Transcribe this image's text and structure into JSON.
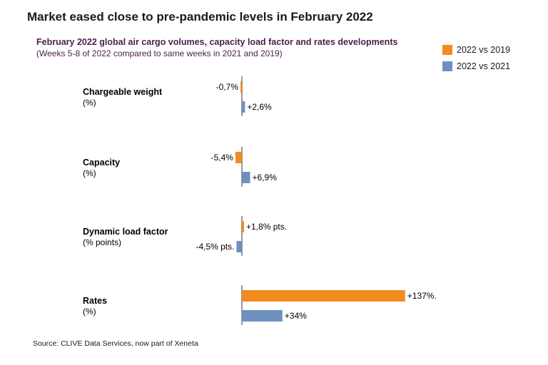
{
  "header": {
    "title": "Market eased close to pre-pandemic levels in February 2022",
    "subtitle": "February 2022 global air cargo volumes, capacity load factor and rates developments",
    "subtitle2": "(Weeks 5-8 of 2022 compared to same weeks in 2021 and 2019)"
  },
  "source": "Source: CLIVE Data Services, now part of Xeneta",
  "chart_data": {
    "type": "bar",
    "orientation": "horizontal",
    "categories": [
      {
        "name": "Chargeable weight",
        "unit": "(%)"
      },
      {
        "name": "Capacity",
        "unit": "(%)"
      },
      {
        "name": "Dynamic load factor",
        "unit": "(% points)"
      },
      {
        "name": "Rates",
        "unit": "(%)"
      }
    ],
    "series": [
      {
        "name": "2022 vs 2019",
        "color": "#f28c1e",
        "values": [
          -0.7,
          -5.4,
          1.8,
          137
        ],
        "labels": [
          "-0,7%",
          "-5,4%",
          "+1,8% pts.",
          "+137%."
        ]
      },
      {
        "name": "2022 vs 2021",
        "color": "#6f8fc0",
        "values": [
          2.6,
          6.9,
          -4.5,
          34
        ],
        "labels": [
          "+2,6%",
          "+6,9%",
          "-4,5% pts.",
          "+34%"
        ]
      }
    ],
    "legend_position": "top-right",
    "grid": false
  }
}
